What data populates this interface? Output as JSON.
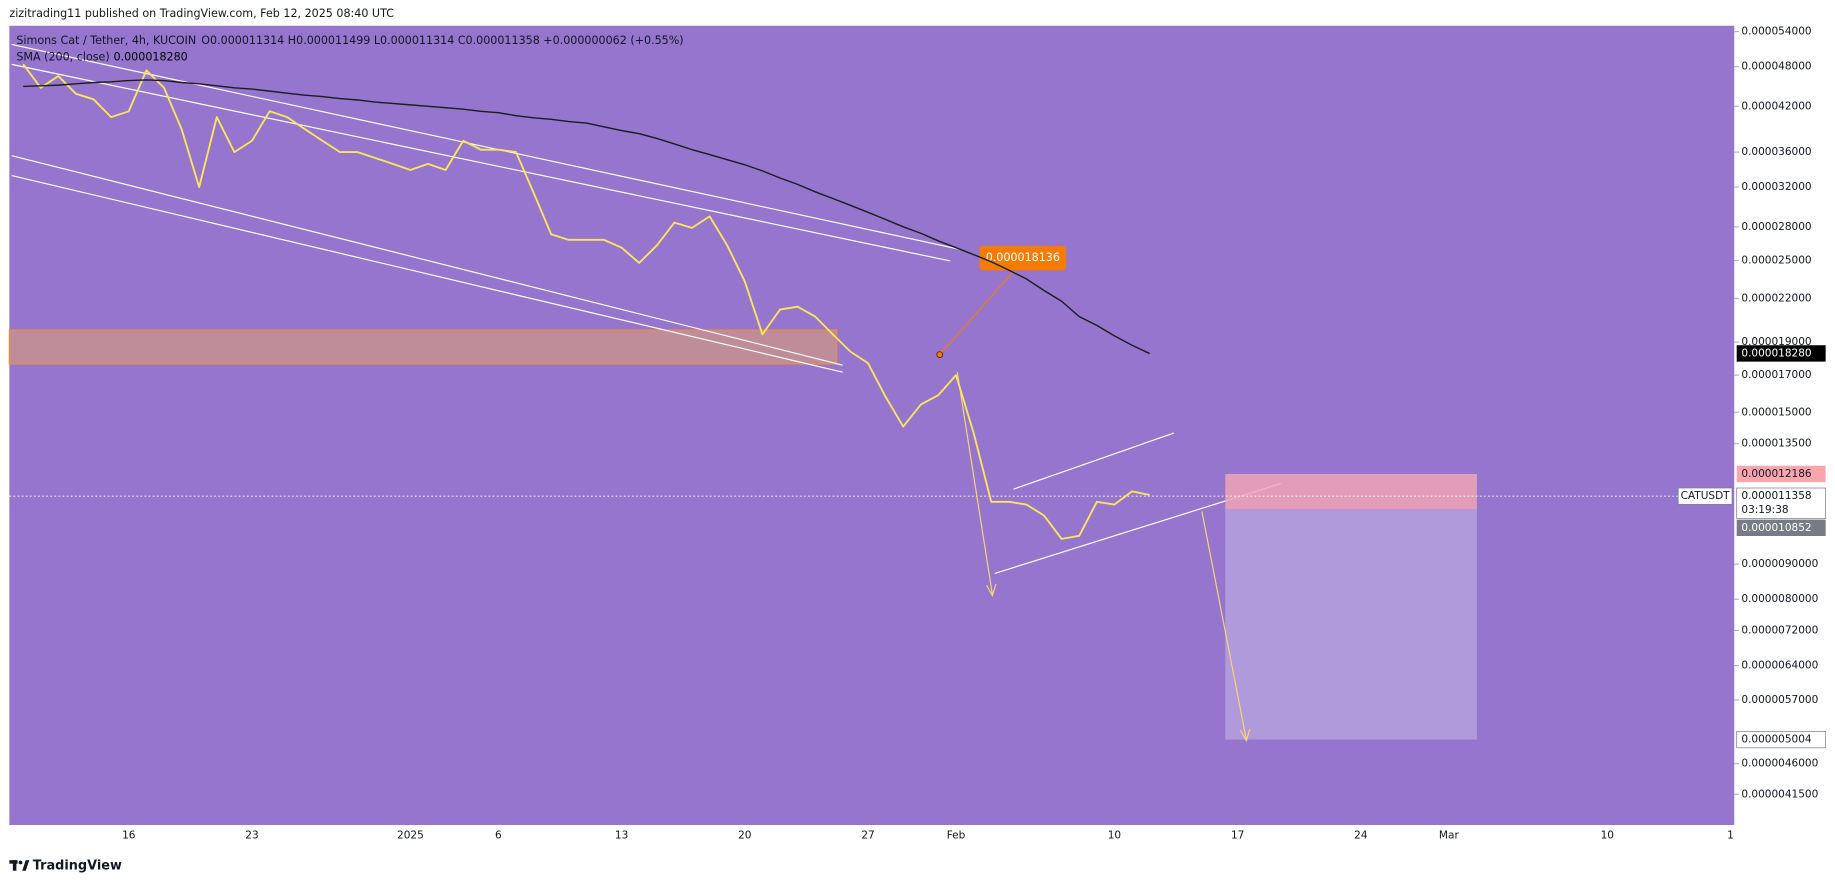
{
  "header": {
    "publisher": "zizitrading11 published on TradingView.com, Feb 12, 2025 08:40 UTC"
  },
  "chart_data": {
    "type": "line",
    "log_scale": true,
    "grid": false,
    "legend_ohlc": "O0.000011314 H0.000011499 L0.000011314 C0.000011358 +0.000000062 (+0.55%)",
    "sma_last_label": "0.000018280",
    "categories": [
      null,
      null,
      null,
      null,
      null,
      null,
      "16",
      null,
      null,
      null,
      null,
      null,
      null,
      "23",
      null,
      null,
      null,
      null,
      null,
      null,
      null,
      null,
      "2025",
      null,
      null,
      null,
      null,
      "6",
      null,
      null,
      null,
      null,
      null,
      null,
      "13",
      null,
      null,
      null,
      null,
      null,
      null,
      "20",
      null,
      null,
      null,
      null,
      null,
      null,
      "27",
      null,
      null,
      null,
      null,
      "Feb",
      null,
      null,
      null,
      null,
      null,
      null,
      null,
      null,
      "10",
      null,
      null,
      null,
      null,
      null,
      null,
      "17",
      null,
      null,
      null,
      null,
      null,
      null,
      "24",
      null,
      null,
      null,
      null,
      "Mar",
      null,
      null,
      null,
      null,
      null,
      null,
      null,
      null,
      "10",
      null,
      null,
      null,
      null,
      null,
      null,
      "1"
    ],
    "series": [
      {
        "name": "Simons Cat / Tether, 4h, KUCOIN",
        "color": "#f9e65c",
        "values": [
          4.84e-05,
          4.47e-05,
          4.65e-05,
          4.38e-05,
          4.3e-05,
          4.05e-05,
          4.13e-05,
          4.74e-05,
          4.47e-05,
          3.89e-05,
          3.2e-05,
          4.05e-05,
          3.6e-05,
          3.74e-05,
          4.13e-05,
          4.05e-05,
          3.89e-05,
          3.74e-05,
          3.6e-05,
          3.6e-05,
          3.53e-05,
          3.46e-05,
          3.39e-05,
          3.46e-05,
          3.39e-05,
          3.74e-05,
          3.63e-05,
          3.63e-05,
          3.6e-05,
          3.14e-05,
          2.73e-05,
          2.68e-05,
          2.68e-05,
          2.68e-05,
          2.61e-05,
          2.48e-05,
          2.63e-05,
          2.84e-05,
          2.79e-05,
          2.9e-05,
          2.63e-05,
          2.33e-05,
          1.95e-05,
          2.12e-05,
          2.14e-05,
          2.07e-05,
          1.95e-05,
          1.84e-05,
          1.77e-05,
          1.58e-05,
          1.43e-05,
          1.54e-05,
          1.59e-05,
          1.7e-05,
          1.4e-05,
          1.11e-05,
          1.11e-05,
          1.1e-05,
          1.06e-05,
          9.8e-06,
          9.9e-06,
          1.11e-05,
          1.1e-05,
          1.15e-05,
          1.1358e-05,
          null,
          null,
          null,
          null,
          null,
          null,
          null,
          null,
          null,
          null,
          null,
          null,
          null,
          null,
          null,
          null,
          null,
          null,
          null,
          null,
          null,
          null,
          null,
          null,
          null,
          null,
          null,
          null,
          null,
          null,
          null,
          null,
          null
        ]
      },
      {
        "name": "SMA (200, close)",
        "color": "#1c1c1c",
        "values": [
          4.49e-05,
          4.5e-05,
          4.51e-05,
          4.53e-05,
          4.55e-05,
          4.56e-05,
          4.58e-05,
          4.59e-05,
          4.58e-05,
          4.55e-05,
          4.53e-05,
          4.5e-05,
          4.47e-05,
          4.45e-05,
          4.42e-05,
          4.39e-05,
          4.36e-05,
          4.34e-05,
          4.31e-05,
          4.29e-05,
          4.26e-05,
          4.24e-05,
          4.22e-05,
          4.2e-05,
          4.18e-05,
          4.16e-05,
          4.13e-05,
          4.11e-05,
          4.07e-05,
          4.04e-05,
          4.02e-05,
          3.99e-05,
          3.97e-05,
          3.92e-05,
          3.87e-05,
          3.83e-05,
          3.77e-05,
          3.7e-05,
          3.63e-05,
          3.57e-05,
          3.51e-05,
          3.45e-05,
          3.38e-05,
          3.3e-05,
          3.23e-05,
          3.15e-05,
          3.08e-05,
          3.01e-05,
          2.94e-05,
          2.87e-05,
          2.8e-05,
          2.74e-05,
          2.67e-05,
          2.61e-05,
          2.55e-05,
          2.49e-05,
          2.42e-05,
          2.35e-05,
          2.26e-05,
          2.18e-05,
          2.07e-05,
          2.01e-05,
          1.94e-05,
          1.88e-05,
          1.828e-05,
          null,
          null,
          null,
          null,
          null,
          null,
          null,
          null,
          null,
          null,
          null,
          null,
          null,
          null,
          null,
          null,
          null,
          null,
          null,
          null,
          null,
          null,
          null,
          null,
          null,
          null,
          null,
          null,
          null,
          null,
          null,
          null,
          null
        ]
      }
    ],
    "ylim": [
      3.742e-06,
      5.507e-05
    ],
    "yticks": [
      {
        "value": 5.4e-05,
        "label": "0.000054000"
      },
      {
        "value": 4.8e-05,
        "label": "0.000048000"
      },
      {
        "value": 4.2e-05,
        "label": "0.000042000"
      },
      {
        "value": 3.6e-05,
        "label": "0.000036000"
      },
      {
        "value": 3.2e-05,
        "label": "0.000032000"
      },
      {
        "value": 2.8e-05,
        "label": "0.000028000"
      },
      {
        "value": 2.5e-05,
        "label": "0.000025000"
      },
      {
        "value": 2.2e-05,
        "label": "0.000022000"
      },
      {
        "value": 1.9e-05,
        "label": "0.000019000"
      },
      {
        "value": 1.7e-05,
        "label": "0.000017000"
      },
      {
        "value": 1.5e-05,
        "label": "0.000015000"
      },
      {
        "value": 1.35e-05,
        "label": "0.000013500"
      },
      {
        "value": 9e-06,
        "label": "0.0000090000"
      },
      {
        "value": 8e-06,
        "label": "0.0000080000"
      },
      {
        "value": 7.2e-06,
        "label": "0.0000072000"
      },
      {
        "value": 6.4e-06,
        "label": "0.0000064000"
      },
      {
        "value": 5.7e-06,
        "label": "0.0000057000"
      },
      {
        "value": 4.6e-06,
        "label": "0.0000046000"
      },
      {
        "value": 4.15e-06,
        "label": "0.0000041500"
      }
    ],
    "annotations": {
      "target_callout": "0.000018136",
      "symbol": "CATUSDT",
      "stop_label": "0.000012186",
      "price_label": "0.000011358",
      "countdown": "03:19:38",
      "entry_label": "0.000010852",
      "target_label": "0.000005004"
    }
  },
  "footer": {
    "brand": "TradingView"
  }
}
